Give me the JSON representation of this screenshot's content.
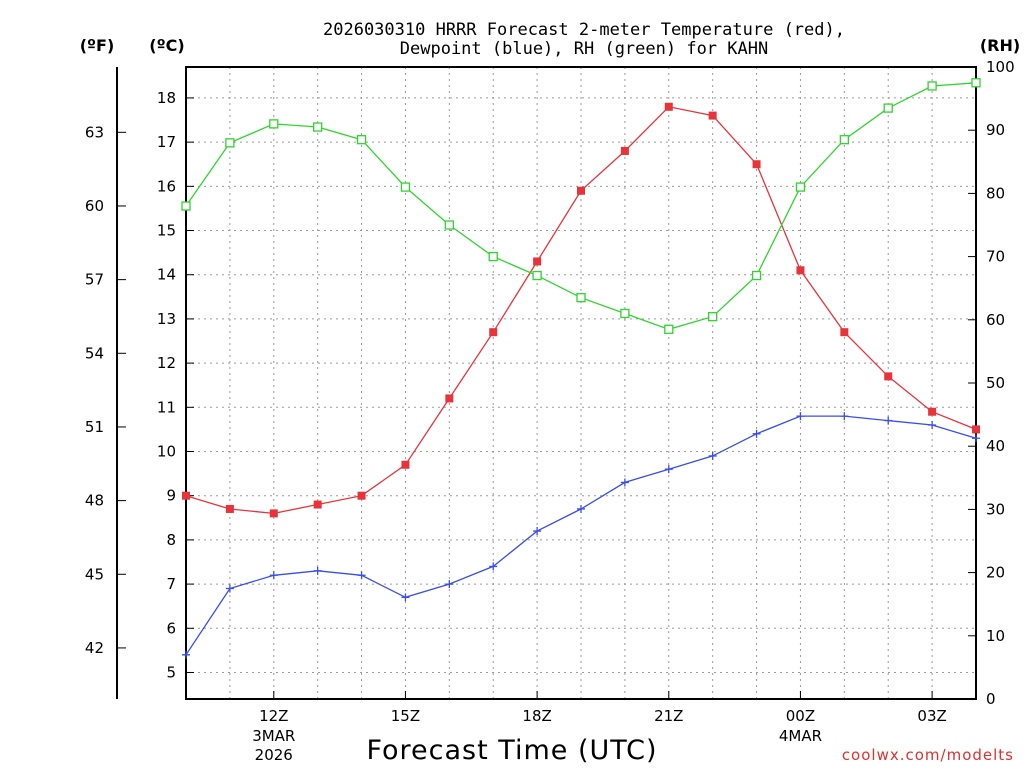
{
  "chart_data": {
    "type": "line",
    "title_lines": [
      "2026030310 HRRR Forecast 2-meter Temperature (red),",
      "Dewpoint (blue), RH (green) for KAHN"
    ],
    "xlabel": "Forecast Time (UTC)",
    "credit": "coolwx.com/modelts",
    "axis_units": {
      "fahrenheit": "(ºF)",
      "celsius": "(ºC)",
      "rh": "(RH)"
    },
    "x_range_hours": [
      10,
      28
    ],
    "celsius_range": [
      4.4,
      18.7
    ],
    "rh_range": [
      0,
      100
    ],
    "celsius_ticks": [
      5,
      6,
      7,
      8,
      9,
      10,
      11,
      12,
      13,
      14,
      15,
      16,
      17,
      18
    ],
    "fahrenheit_ticks": [
      42,
      45,
      48,
      51,
      54,
      57,
      60,
      63
    ],
    "rh_ticks": [
      0,
      10,
      20,
      30,
      40,
      50,
      60,
      70,
      80,
      90,
      100
    ],
    "x_ticks": [
      {
        "hour": 12,
        "label": "12Z",
        "date": "3MAR",
        "year": "2026"
      },
      {
        "hour": 15,
        "label": "15Z",
        "date": "",
        "year": ""
      },
      {
        "hour": 18,
        "label": "18Z",
        "date": "",
        "year": ""
      },
      {
        "hour": 21,
        "label": "21Z",
        "date": "",
        "year": ""
      },
      {
        "hour": 24,
        "label": "00Z",
        "date": "4MAR",
        "year": ""
      },
      {
        "hour": 27,
        "label": "03Z",
        "date": "",
        "year": ""
      }
    ],
    "hours": [
      10,
      11,
      12,
      13,
      14,
      15,
      16,
      17,
      18,
      19,
      20,
      21,
      22,
      23,
      24,
      25,
      26,
      27,
      28
    ],
    "series": [
      {
        "name": "2-meter Temperature",
        "unit": "C",
        "color": "#e8333b",
        "marker": "filled-square",
        "values": [
          9.0,
          8.7,
          8.6,
          8.8,
          9.0,
          9.7,
          11.2,
          12.7,
          14.3,
          15.9,
          16.8,
          17.8,
          17.6,
          16.5,
          14.1,
          12.7,
          11.7,
          10.9,
          10.5
        ]
      },
      {
        "name": "Dewpoint",
        "unit": "C",
        "color": "#3a4ee8",
        "marker": "plus",
        "values": [
          5.4,
          6.9,
          7.2,
          7.3,
          7.2,
          6.7,
          7.0,
          7.4,
          8.2,
          8.7,
          9.3,
          9.6,
          9.9,
          10.4,
          10.8,
          10.8,
          10.7,
          10.6,
          10.3
        ]
      },
      {
        "name": "RH",
        "unit": "%",
        "color": "#2ed62e",
        "marker": "open-square",
        "values": [
          78,
          88,
          91,
          90.5,
          88.5,
          81,
          75,
          70,
          67,
          63.5,
          61,
          58.5,
          60.5,
          67,
          81,
          88.5,
          93.5,
          97,
          97.5
        ]
      }
    ]
  }
}
